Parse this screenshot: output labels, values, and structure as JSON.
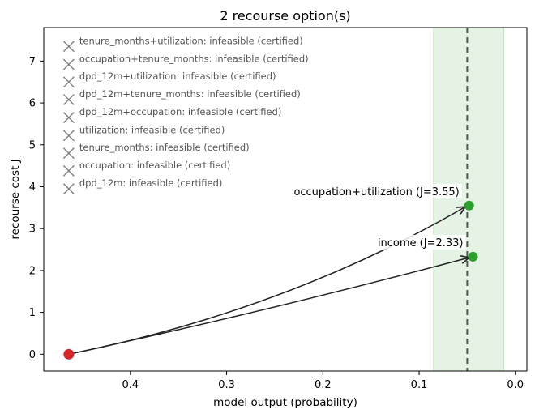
{
  "chart_data": {
    "type": "scatter",
    "title": "2 recourse option(s)",
    "xlabel": "model output (probability)",
    "ylabel": "recourse cost J",
    "xlim": [
      0.49,
      -0.012
    ],
    "ylim": [
      -0.4,
      7.8
    ],
    "x_inverted": true,
    "x_ticks": [
      0.4,
      0.3,
      0.2,
      0.1,
      0.0
    ],
    "x_tick_labels": [
      "0.4",
      "0.3",
      "0.2",
      "0.1",
      "0.0"
    ],
    "y_ticks": [
      0,
      1,
      2,
      3,
      4,
      5,
      6,
      7
    ],
    "y_tick_labels": [
      "0",
      "1",
      "2",
      "3",
      "4",
      "5",
      "6",
      "7"
    ],
    "grid": false,
    "threshold": {
      "x": 0.05,
      "style": "dashed",
      "color": "#555555"
    },
    "feasible_band": {
      "x_from": 0.085,
      "x_to": 0.012,
      "color": "#2ca02c"
    },
    "origin": {
      "x": 0.464,
      "y": 0.0,
      "color": "#d62728"
    },
    "options": [
      {
        "label": "occupation+utilization (J=3.55)",
        "x": 0.048,
        "y": 3.55,
        "color": "#2ca02c"
      },
      {
        "label": "income (J=2.33)",
        "x": 0.044,
        "y": 2.33,
        "color": "#2ca02c"
      }
    ],
    "infeasible": [
      {
        "label": "tenure_months+utilization: infeasible (certified)",
        "y": 7.35
      },
      {
        "label": "occupation+tenure_months: infeasible (certified)",
        "y": 6.92
      },
      {
        "label": "dpd_12m+utilization: infeasible (certified)",
        "y": 6.5
      },
      {
        "label": "dpd_12m+tenure_months: infeasible (certified)",
        "y": 6.08
      },
      {
        "label": "dpd_12m+occupation: infeasible (certified)",
        "y": 5.65
      },
      {
        "label": "utilization: infeasible (certified)",
        "y": 5.22
      },
      {
        "label": "tenure_months: infeasible (certified)",
        "y": 4.8
      },
      {
        "label": "occupation: infeasible (certified)",
        "y": 4.38
      },
      {
        "label": "dpd_12m: infeasible (certified)",
        "y": 3.95
      }
    ],
    "infeasible_marker_x": 0.464,
    "infeasible_color": "#808080"
  }
}
